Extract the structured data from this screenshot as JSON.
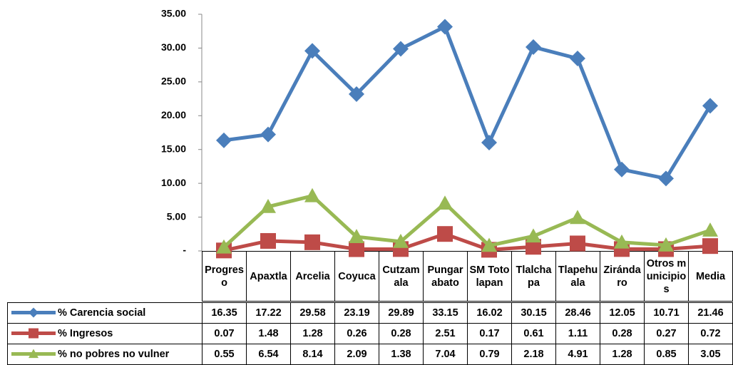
{
  "chart_data": {
    "type": "line",
    "categories": [
      "Progreso",
      "Apaxtla",
      "Arcelia",
      "Coyuca",
      "Cutzamala",
      "Pungarabato",
      "SM Totolapan",
      "Tlalchapa",
      "Tlapehuala",
      "Zirándaro",
      "Otros municipios",
      "Media"
    ],
    "series": [
      {
        "name": "% Carencia social",
        "color": "#4a7ebb",
        "marker": "diamond",
        "values": [
          16.35,
          17.22,
          29.58,
          23.19,
          29.89,
          33.15,
          16.02,
          30.15,
          28.46,
          12.05,
          10.71,
          21.46
        ]
      },
      {
        "name": "% Ingresos",
        "color": "#be4b48",
        "marker": "square",
        "values": [
          0.07,
          1.48,
          1.28,
          0.26,
          0.28,
          2.51,
          0.17,
          0.61,
          1.11,
          0.28,
          0.27,
          0.72
        ]
      },
      {
        "name": "% no pobres no vulner",
        "color": "#98b954",
        "marker": "triangle",
        "values": [
          0.55,
          6.54,
          8.14,
          2.09,
          1.38,
          7.04,
          0.79,
          2.18,
          4.91,
          1.28,
          0.85,
          3.05
        ]
      }
    ],
    "ylim": [
      0,
      35
    ],
    "yticks": [
      {
        "value": 0,
        "label": "-"
      },
      {
        "value": 5,
        "label": "5.00"
      },
      {
        "value": 10,
        "label": "10.00"
      },
      {
        "value": 15,
        "label": "15.00"
      },
      {
        "value": 20,
        "label": "20.00"
      },
      {
        "value": 25,
        "label": "25.00"
      },
      {
        "value": 30,
        "label": "30.00"
      },
      {
        "value": 35,
        "label": "35.00"
      }
    ],
    "grid": false
  }
}
